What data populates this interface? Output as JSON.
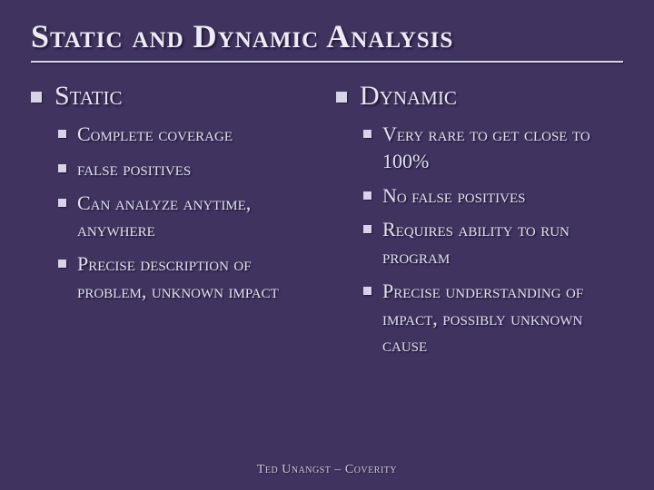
{
  "title": "Static and Dynamic Analysis",
  "columns": [
    {
      "heading": "Static",
      "items": [
        "Complete coverage",
        "false positives",
        "Can analyze anytime, anywhere",
        "Precise description of problem, unknown impact"
      ]
    },
    {
      "heading": "Dynamic",
      "items": [
        "Very rare to get close to 100%",
        "No false positives",
        "Requires ability to run program",
        "Precise understanding of impact, possibly unknown cause"
      ]
    }
  ],
  "footer": "Ted Unangst – Coverity",
  "style": {
    "background": "#403360",
    "text_color": "#e6e3ee",
    "rule_color": "#d8d3e6",
    "bullet_color": "#d8d3e6",
    "title_fontsize": 36,
    "heading_fontsize": 30,
    "item_fontsize": 22,
    "footer_fontsize": 14,
    "font_family": "Copperplate / small-caps serif"
  }
}
